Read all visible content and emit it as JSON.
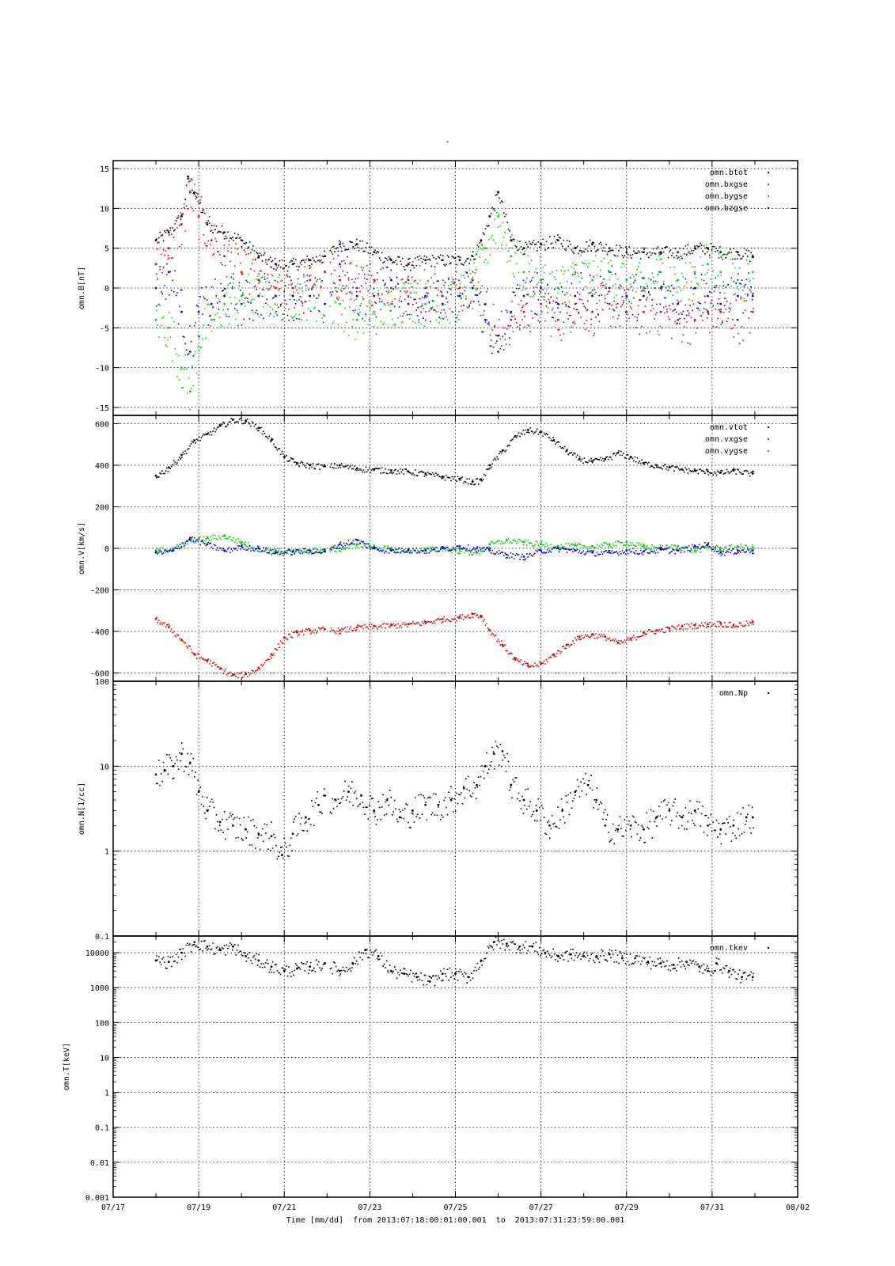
{
  "page": {
    "title": "-",
    "x_title_prefix": "Time [mm/dd]",
    "x_title_range": "from 2013:07:18:00:01:00.001  to  2013:07:31:23:59:00.001"
  },
  "colors": {
    "black": "#000000",
    "red": "#dd0000",
    "green": "#00cc00",
    "blue": "#0000dd"
  },
  "chart_data": [
    {
      "type": "scatter",
      "title": "",
      "ylabel": "omn.B[nT]",
      "xlabel": "",
      "x_axis": {
        "ticks": [
          "07/17",
          "07/19",
          "07/21",
          "07/23",
          "07/25",
          "07/27",
          "07/29",
          "07/31",
          "08/02"
        ],
        "range": [
          "2013-07-17",
          "2013-08-02"
        ]
      },
      "ylim": [
        -16,
        16
      ],
      "yscale": "linear",
      "yticks": [
        15,
        10,
        5,
        0,
        -5,
        -10,
        -15
      ],
      "grid": true,
      "legend": "top-right",
      "series": [
        {
          "name": "omn.btot",
          "color": "#000000",
          "x": [
            18.0,
            18.3,
            18.6,
            18.75,
            18.9,
            19.2,
            19.6,
            20.0,
            20.4,
            20.8,
            21.2,
            21.6,
            21.95,
            22.3,
            22.7,
            23.1,
            23.5,
            23.9,
            24.3,
            24.7,
            25.1,
            25.4,
            25.6,
            25.8,
            26.0,
            26.3,
            26.6,
            27.0,
            27.4,
            27.8,
            28.2,
            28.6,
            29.0,
            29.4,
            29.8,
            30.2,
            30.6,
            30.9,
            31.2,
            31.6,
            31.95
          ],
          "y": [
            6,
            7,
            9,
            14,
            12,
            8,
            7,
            6,
            4,
            3,
            3,
            3.5,
            4,
            5.5,
            5.5,
            4.5,
            3.5,
            3,
            3.5,
            3.5,
            3.5,
            4,
            6,
            9,
            12,
            6,
            5,
            5.5,
            6,
            5,
            5.5,
            5,
            4.5,
            4.5,
            4.5,
            4.5,
            5,
            5,
            4.5,
            4.5,
            4
          ]
        },
        {
          "name": "omn.bxgse",
          "color": "#dd0000",
          "x": [
            18.0,
            18.3,
            18.6,
            18.8,
            19.0,
            19.3,
            19.6,
            20.0,
            20.4,
            20.8,
            21.2,
            21.6,
            21.95,
            22.3,
            22.7,
            23.1,
            23.5,
            23.9,
            24.3,
            24.7,
            25.1,
            25.4,
            25.7,
            26.0,
            26.3,
            26.6,
            27.0,
            27.4,
            27.8,
            28.2,
            28.6,
            29.0,
            29.4,
            29.8,
            30.2,
            30.6,
            30.9,
            31.2,
            31.6,
            31.95
          ],
          "y": [
            3,
            5,
            8,
            12,
            9,
            6,
            4,
            2,
            1,
            0,
            0,
            1,
            2,
            1,
            0,
            1,
            0,
            1,
            0,
            -1,
            0,
            1,
            -2,
            -6,
            -4,
            -3,
            -2,
            -4,
            -2,
            -3,
            -2,
            -3,
            -3,
            -3,
            -4,
            -4,
            -3,
            -3,
            -4,
            -3
          ]
        },
        {
          "name": "omn.bygse",
          "color": "#00cc00",
          "x": [
            18.0,
            18.3,
            18.6,
            18.8,
            19.0,
            19.3,
            19.6,
            20.0,
            20.4,
            20.8,
            21.2,
            21.6,
            21.95,
            22.3,
            22.7,
            23.1,
            23.5,
            23.9,
            24.3,
            24.7,
            25.1,
            25.4,
            25.7,
            26.0,
            26.3,
            26.6,
            27.0,
            27.4,
            27.8,
            28.2,
            28.6,
            29.0,
            29.4,
            29.8,
            30.2,
            30.6,
            30.9,
            31.2,
            31.6,
            31.95
          ],
          "y": [
            -4,
            -5,
            -10,
            -13,
            -6,
            -4,
            -2,
            -1,
            -1,
            -1,
            -1,
            -1,
            -2,
            -2,
            -4,
            -3,
            -2,
            -1,
            -2,
            -2,
            -1,
            0,
            5,
            9,
            4,
            2,
            1,
            0,
            2,
            1,
            2,
            1,
            0,
            2,
            1,
            2,
            3,
            2,
            1,
            2
          ]
        },
        {
          "name": "omn.bzgse",
          "color": "#0000dd",
          "x": [
            18.0,
            18.3,
            18.6,
            18.8,
            19.0,
            19.3,
            19.6,
            20.0,
            20.4,
            20.8,
            21.2,
            21.6,
            21.95,
            22.3,
            22.7,
            23.1,
            23.5,
            23.9,
            24.3,
            24.7,
            25.1,
            25.4,
            25.7,
            26.0,
            26.3,
            26.6,
            27.0,
            27.4,
            27.8,
            28.2,
            28.6,
            29.0,
            29.4,
            29.8,
            30.2,
            30.6,
            30.9,
            31.2,
            31.6,
            31.95
          ],
          "y": [
            0,
            2,
            -3,
            -8,
            -3,
            -2,
            -1,
            -2,
            -1,
            -1,
            -1,
            -1,
            -2,
            3,
            -1,
            -1,
            1,
            -2,
            -1,
            -2,
            -1,
            0,
            -4,
            -8,
            -3,
            -1,
            0,
            -2,
            -1,
            -1,
            0,
            -1,
            -1,
            0,
            -2,
            0,
            -1,
            -2,
            -1,
            -1
          ]
        }
      ]
    },
    {
      "type": "scatter",
      "title": "",
      "ylabel": "omn.V[km/s]",
      "xlabel": "",
      "x_axis": {
        "ticks": [
          "07/17",
          "07/19",
          "07/21",
          "07/23",
          "07/25",
          "07/27",
          "07/29",
          "07/31",
          "08/02"
        ],
        "range": [
          "2013-07-17",
          "2013-08-02"
        ]
      },
      "ylim": [
        -640,
        640
      ],
      "yscale": "linear",
      "yticks": [
        600,
        400,
        200,
        0,
        -200,
        -400,
        -600
      ],
      "grid": true,
      "legend": "top-right",
      "series": [
        {
          "name": "omn.vtot",
          "color": "#000000",
          "x": [
            18.0,
            18.3,
            18.6,
            18.9,
            19.2,
            19.5,
            19.8,
            20.1,
            20.4,
            20.7,
            21.0,
            21.3,
            21.6,
            21.95,
            22.3,
            22.7,
            23.1,
            23.5,
            23.9,
            24.3,
            24.7,
            25.1,
            25.4,
            25.6,
            25.8,
            26.1,
            26.4,
            26.7,
            27.0,
            27.3,
            27.6,
            27.9,
            28.2,
            28.5,
            28.8,
            29.1,
            29.4,
            29.7,
            30.0,
            30.3,
            30.6,
            30.9,
            31.2,
            31.5,
            31.95
          ],
          "y": [
            350,
            390,
            450,
            520,
            550,
            590,
            620,
            615,
            580,
            520,
            440,
            410,
            400,
            395,
            400,
            385,
            380,
            375,
            370,
            360,
            345,
            335,
            320,
            330,
            400,
            470,
            540,
            570,
            560,
            520,
            470,
            430,
            420,
            430,
            460,
            440,
            410,
            400,
            390,
            380,
            375,
            370,
            365,
            375,
            360
          ]
        },
        {
          "name": "omn.vxgse",
          "color": "#dd0000",
          "x": [
            18.0,
            18.3,
            18.6,
            18.9,
            19.2,
            19.5,
            19.8,
            20.1,
            20.4,
            20.7,
            21.0,
            21.3,
            21.6,
            21.95,
            22.3,
            22.7,
            23.1,
            23.5,
            23.9,
            24.3,
            24.7,
            25.1,
            25.4,
            25.6,
            25.8,
            26.1,
            26.4,
            26.7,
            27.0,
            27.3,
            27.6,
            27.9,
            28.2,
            28.5,
            28.8,
            29.1,
            29.4,
            29.7,
            30.0,
            30.3,
            30.6,
            30.9,
            31.2,
            31.5,
            31.95
          ],
          "y": [
            -340,
            -380,
            -440,
            -510,
            -540,
            -580,
            -610,
            -605,
            -575,
            -510,
            -430,
            -405,
            -395,
            -390,
            -395,
            -380,
            -375,
            -370,
            -365,
            -355,
            -340,
            -330,
            -315,
            -325,
            -395,
            -465,
            -535,
            -565,
            -555,
            -510,
            -465,
            -425,
            -415,
            -425,
            -455,
            -435,
            -405,
            -395,
            -385,
            -375,
            -370,
            -365,
            -360,
            -370,
            -355
          ]
        },
        {
          "name": "omn.vygse",
          "color": "#00cc00",
          "x": [
            18.0,
            18.4,
            18.8,
            19.2,
            19.6,
            20.0,
            20.4,
            20.8,
            21.2,
            21.6,
            21.95,
            22.3,
            22.7,
            23.1,
            23.5,
            23.9,
            24.3,
            24.7,
            25.1,
            25.5,
            25.8,
            26.2,
            26.6,
            27.0,
            27.4,
            27.8,
            28.2,
            28.6,
            29.0,
            29.4,
            29.8,
            30.2,
            30.6,
            30.9,
            31.2,
            31.6,
            31.95
          ],
          "y": [
            -10,
            0,
            40,
            50,
            60,
            30,
            0,
            -10,
            -15,
            -10,
            -5,
            0,
            20,
            10,
            -5,
            -10,
            -5,
            0,
            -10,
            -20,
            20,
            40,
            30,
            20,
            10,
            15,
            10,
            20,
            30,
            10,
            5,
            10,
            -10,
            10,
            0,
            10,
            5
          ]
        },
        {
          "name": "",
          "color": "#0000dd",
          "x": [
            18.0,
            18.4,
            18.8,
            19.2,
            19.6,
            20.0,
            20.4,
            20.8,
            21.2,
            21.6,
            21.95,
            22.3,
            22.7,
            23.1,
            23.5,
            23.9,
            24.3,
            24.7,
            25.1,
            25.5,
            25.8,
            26.2,
            26.6,
            27.0,
            27.4,
            27.8,
            28.2,
            28.6,
            29.0,
            29.4,
            29.8,
            30.2,
            30.6,
            30.9,
            31.2,
            31.6,
            31.95
          ],
          "y": [
            -20,
            -10,
            50,
            20,
            -10,
            10,
            0,
            -20,
            -15,
            -10,
            -15,
            20,
            40,
            0,
            -10,
            -5,
            -10,
            0,
            10,
            0,
            -10,
            -30,
            -40,
            -10,
            0,
            -10,
            -20,
            -20,
            -10,
            -15,
            -5,
            -10,
            10,
            20,
            -20,
            -10,
            -10
          ]
        }
      ]
    },
    {
      "type": "scatter",
      "title": "",
      "ylabel": "omn.N[1/cc]",
      "xlabel": "",
      "x_axis": {
        "ticks": [
          "07/17",
          "07/19",
          "07/21",
          "07/23",
          "07/25",
          "07/27",
          "07/29",
          "07/31",
          "08/02"
        ],
        "range": [
          "2013-07-17",
          "2013-08-02"
        ]
      },
      "ylim": [
        0.1,
        100
      ],
      "yscale": "log",
      "yticks": [
        "100",
        "10",
        "1",
        "0.1"
      ],
      "grid": true,
      "legend": "top-right",
      "series": [
        {
          "name": "omn.Np",
          "color": "#000000",
          "x": [
            18.0,
            18.2,
            18.4,
            18.6,
            18.8,
            19.0,
            19.2,
            19.5,
            19.8,
            20.1,
            20.4,
            20.7,
            20.95,
            21.2,
            21.5,
            21.8,
            21.95,
            22.2,
            22.5,
            22.8,
            23.1,
            23.4,
            23.7,
            24.0,
            24.3,
            24.6,
            24.9,
            25.2,
            25.5,
            25.7,
            25.9,
            26.1,
            26.3,
            26.6,
            26.9,
            27.2,
            27.5,
            27.8,
            28.1,
            28.3,
            28.5,
            28.8,
            29.1,
            29.4,
            29.7,
            30.0,
            30.3,
            30.6,
            30.9,
            31.2,
            31.5,
            31.8,
            31.95
          ],
          "y": [
            8,
            9,
            10,
            14,
            11,
            5,
            3,
            2.2,
            2,
            1.8,
            1.6,
            1.5,
            0.9,
            1.6,
            2.5,
            3.5,
            4.5,
            4,
            5,
            4.5,
            3,
            4,
            2.5,
            3,
            3.5,
            3.5,
            4,
            5.5,
            6,
            10,
            14,
            15,
            6,
            4,
            3,
            2,
            3,
            5,
            6,
            4,
            2,
            1.8,
            2,
            1.8,
            2.5,
            3,
            2.5,
            3,
            2,
            1.8,
            2,
            2.5,
            2.5
          ]
        }
      ]
    },
    {
      "type": "scatter",
      "title": "",
      "ylabel": "omn.T[keV]",
      "xlabel": "",
      "x_axis": {
        "ticks": [
          "07/17",
          "07/19",
          "07/21",
          "07/23",
          "07/25",
          "07/27",
          "07/29",
          "07/31",
          "08/02"
        ],
        "range": [
          "2013-07-17",
          "2013-08-02"
        ]
      },
      "ylim": [
        0.001,
        30000
      ],
      "yscale": "log",
      "yticks": [
        "10000",
        "1000",
        "100",
        "10",
        "1",
        "0.1",
        "0.01",
        "0.001"
      ],
      "grid": true,
      "legend": "top-right",
      "series": [
        {
          "name": "omn.tkev",
          "color": "#000000",
          "x": [
            18.0,
            18.3,
            18.6,
            18.9,
            19.2,
            19.5,
            19.8,
            20.1,
            20.4,
            20.7,
            21.0,
            21.3,
            21.6,
            21.95,
            22.3,
            22.6,
            22.9,
            23.2,
            23.5,
            23.8,
            24.1,
            24.4,
            24.7,
            25.0,
            25.3,
            25.6,
            25.9,
            26.2,
            26.5,
            26.8,
            27.1,
            27.4,
            27.7,
            28.0,
            28.3,
            28.6,
            28.9,
            29.2,
            29.5,
            29.8,
            30.1,
            30.4,
            30.7,
            30.9,
            31.1,
            31.4,
            31.7,
            31.95
          ],
          "y": [
            6000,
            5500,
            10000,
            20000,
            15000,
            12000,
            15000,
            8000,
            6000,
            4000,
            3000,
            3500,
            4000,
            5000,
            3000,
            5000,
            12000,
            8000,
            3000,
            2500,
            2000,
            1500,
            2500,
            2500,
            2000,
            6000,
            20000,
            18000,
            15000,
            15000,
            10000,
            8000,
            9000,
            8000,
            8000,
            9000,
            7000,
            7000,
            5500,
            5000,
            4500,
            5500,
            4000,
            3000,
            5000,
            3000,
            2000,
            2000
          ]
        }
      ]
    }
  ]
}
